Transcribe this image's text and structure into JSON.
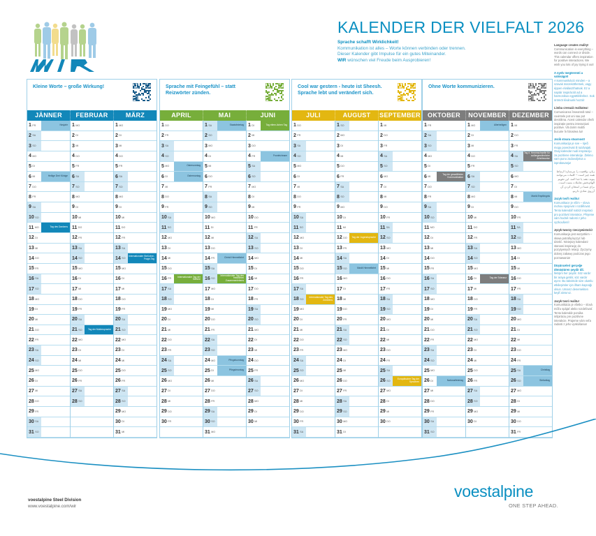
{
  "header": {
    "logo_text": "WIR",
    "title": "KALENDER DER VIELFALT 2026",
    "intro_heading": "Sprache schafft Wirklichkeit!",
    "intro_lines": [
      "Kommunikation ist alles – Worte können verbinden oder trennen.",
      "Dieser Kalender gibt Impulse für ein gutes Miteinander."
    ],
    "intro_last_bold": "WIR",
    "intro_last_rest": " wünschen viel Freude beim Ausprobieren!"
  },
  "sidebar": [
    {
      "heading": "Language creates reality!",
      "body": "Communication is everything – words can connect or divide. This calendar offers inspiration for positive interactions. We wish you lots of joy trying it out!",
      "style": "grey"
    },
    {
      "heading": "A nyelv megteremti a valóságot!",
      "body": "A kommunikáció minden – a szavak összeköthetnek, vagy éppen elválaszthatnak. Ez a naptár inspirációt ad a harmonikus együttléléshez. Sok örömöt kívánunk hozzá!",
      "style": "blue"
    },
    {
      "heading": "Limba creează realitatea!",
      "body": "Comunicarea înseamnă totul – cuvintele pot uni sau pot destrăma. Acest calendar oferă inspirație pentru interacțiuni pozitive. Vă dorim multă bucurie în folosirea lui!",
      "style": "grey"
    },
    {
      "heading": "Jezik stvara stvarnost!",
      "body": "Komunikacija je sve – riječi mogu povezivati ili razdvajati. Ovaj kalendar nudi inspiraciju za pozitivne interakcije. Želimo vam puno zadovoljstva u isprobavanju!",
      "style": "blue"
    },
    {
      "heading": "",
      "body": "زبان، واقعیت را می‌سازد! ارتباط همه چیز است – کلمات می‌توانند پیوند دهند یا جدا کنند. این تقویم الهام‌بخش تعاملات مثبت است. برای شما در امتحان کردن آن آرزوی شادی داریم.",
      "style": "grey"
    },
    {
      "heading": "Jazyk tvoří realitu!",
      "body": "Komunikace je vším – slova mohou spojovat i rozdělovat. Tento kalendář nabízí inspiraci pro pozitivní interakce. Přejeme vám hodně radosti z jeho vyzkoušení!",
      "style": "blue"
    },
    {
      "heading": "Język tworzy rzeczywistość!",
      "body": "Komunikacja jest wszystkim – słowa potrafią łączyć lub dzielić. Niniejszy kalendarz stanowi inspirację do pozytywnych relacji. Życzymy dobrej zabawy podczas jego poznawania!",
      "style": "grey"
    },
    {
      "heading": "Düşünceleri gerçeğe dönüştüren şeydir dil.",
      "body": "İletişim her şeydir. Söz vardır bir araya getirir, söz vardır ayırır. Bu takvimde size olumlu etkileşimler için ilham kaynağı olsun. Umarız denemekten keyif alırsınız.",
      "style": "blue"
    },
    {
      "heading": "Jazyk tvorí realitu!",
      "body": "Komunikácia je všetko – slová môžu spájať alebo rozdeľovať. Tento kalendár ponúka inšpiráciu pre pozitívne interakcie. Prajeme vám veľa radosti z jeho vyskúšania!",
      "style": "grey"
    }
  ],
  "colors": {
    "q1": "#1287b9",
    "q2": "#77ae3b",
    "q3": "#e3b711",
    "q4": "#7d7d7d",
    "holiday": "#8cc4e0",
    "weekend": "#cfe6f3",
    "border": "#9fd0e8",
    "brand": "#0a8fc1"
  },
  "quarters": [
    {
      "motto": "Kleine Worte – große Wirkung!",
      "color": "#1287b9",
      "months": [
        {
          "name": "JÄNNER",
          "start": 4,
          "days": 31,
          "events": {
            "1": [
              "Neujahr",
              "holiday"
            ],
            "6": [
              "Heilige Drei Könige",
              "holiday"
            ],
            "11": [
              "Tag des Dankens",
              "accent"
            ]
          }
        },
        {
          "name": "FEBRUAR",
          "start": 0,
          "days": 28,
          "events": {
            "21": [
              "Tag der Muttersprache",
              "accent"
            ]
          }
        },
        {
          "name": "MÄRZ",
          "start": 0,
          "days": 31,
          "events": {
            "14": [
              "Internationaler Stell-eine-Frage-Tag",
              "accent"
            ]
          }
        }
      ]
    },
    {
      "motto": "Sprache mit Feingefühl – statt Reizwörter zünden.",
      "color": "#77ae3b",
      "months": [
        {
          "name": "APRIL",
          "start": 3,
          "days": 30,
          "events": {
            "5": [
              "Ostersonntag",
              "holiday"
            ],
            "6": [
              "Ostermontag",
              "holiday"
            ],
            "16": [
              "Internationaler Tag der Stimme",
              "accent"
            ]
          }
        },
        {
          "name": "MAI",
          "start": 5,
          "days": 31,
          "events": {
            "1": [
              "Staatsfeiertag",
              "holiday"
            ],
            "14": [
              "Christi Himmelfahrt",
              "holiday"
            ],
            "16": [
              "Internationaler Tag des friedlichen Zusammenlebens",
              "accent"
            ],
            "24": [
              "Pfingstsonntag",
              "holiday"
            ],
            "25": [
              "Pfingstmontag",
              "holiday"
            ]
          }
        },
        {
          "name": "JUNI",
          "start": 1,
          "days": 30,
          "events": {
            "1": [
              "Tag eltern-lichen Tag",
              "accent"
            ],
            "4": [
              "Fronleichnam",
              "holiday"
            ]
          }
        }
      ]
    },
    {
      "motto": "Cool war gestern - heute ist Sheesh. Sprache lebt und verändert sich.",
      "color": "#e3b711",
      "months": [
        {
          "name": "JULI",
          "start": 3,
          "days": 31,
          "events": {
            "18": [
              "Internationaler Tag des Zuhörens",
              "accent"
            ]
          }
        },
        {
          "name": "AUGUST",
          "start": 6,
          "days": 31,
          "events": {
            "12": [
              "Tag der Jugendsprache",
              "accent"
            ],
            "15": [
              "Mariä Himmelfahrt",
              "holiday"
            ]
          }
        },
        {
          "name": "SEPTEMBER",
          "start": 2,
          "days": 30,
          "events": {
            "26": [
              "Europäischer Tag der Sprachen",
              "accent"
            ]
          }
        }
      ]
    },
    {
      "motto": "Ohne Worte kommunizieren.",
      "color": "#7d7d7d",
      "months": [
        {
          "name": "OKTOBER",
          "start": 4,
          "days": 31,
          "events": {
            "6": [
              "Tag der gewaltfreien Kommunikation",
              "accent"
            ],
            "26": [
              "Nationalfeiertag",
              "holiday"
            ]
          }
        },
        {
          "name": "NOVEMBER",
          "start": 0,
          "days": 30,
          "events": {
            "1": [
              "Allerheiligen",
              "holiday"
            ],
            "16": [
              "Tag der Toleranz",
              "accent"
            ]
          }
        },
        {
          "name": "DEZEMBER",
          "start": 2,
          "days": 31,
          "events": {
            "4": [
              "Tag d. Hemmschwelle für außergewöhnliche Arbeitsweise",
              "accent"
            ],
            "8": [
              "Mariä Empfängnis",
              "holiday"
            ],
            "25": [
              "Christtag",
              "holiday"
            ],
            "26": [
              "Stefanitag",
              "holiday"
            ]
          }
        }
      ]
    }
  ],
  "weekdays": [
    "MO",
    "DI",
    "MI",
    "DO",
    "FR",
    "SA",
    "SO"
  ],
  "footer": {
    "company": "voestalpine Steel Division",
    "url": "www.voestalpine.com/wir",
    "brand": "voestalpine",
    "tagline": "ONE STEP AHEAD."
  }
}
